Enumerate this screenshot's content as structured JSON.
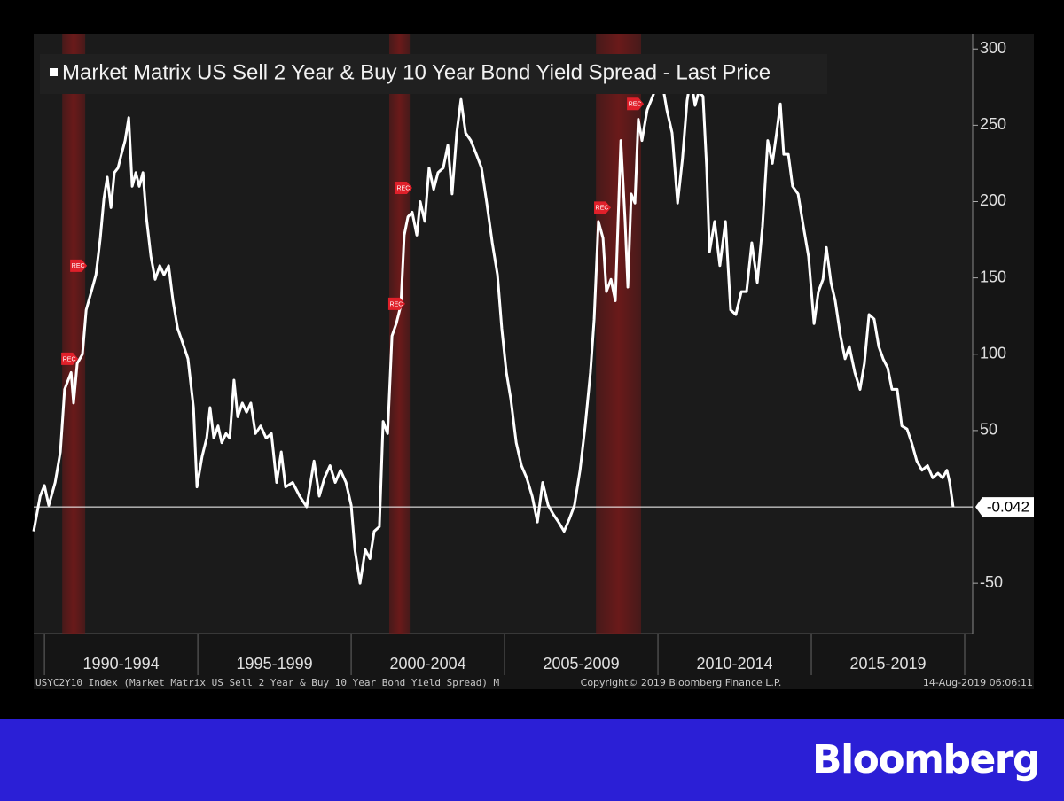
{
  "chart_data": {
    "type": "line",
    "series": [
      {
        "name": "Market Matrix US Sell 2 Year & Buy 10 Year Bond Yield Spread - Last Price",
        "color": "#ffffff",
        "values": [
          -16,
          7,
          14,
          1,
          16,
          36,
          77,
          88,
          68,
          94,
          100,
          129,
          141,
          152,
          176,
          202,
          216,
          196,
          219,
          222,
          231,
          240,
          255,
          210,
          219,
          210,
          219,
          190,
          164,
          149,
          158,
          152,
          158,
          135,
          117,
          109,
          97,
          65,
          13,
          33,
          45,
          65,
          45,
          53,
          42,
          48,
          45,
          83,
          59,
          68,
          62,
          68,
          48,
          53,
          45,
          48,
          16,
          36,
          13,
          16,
          7,
          0,
          30,
          7,
          19,
          27,
          16,
          24,
          16,
          1,
          -28,
          -50,
          -28,
          -34,
          -16,
          -13,
          56,
          48,
          112,
          120,
          132,
          178,
          190,
          193,
          178,
          200,
          187,
          222,
          208,
          219,
          222,
          237,
          205,
          245,
          267,
          245,
          240,
          231,
          222,
          199,
          173,
          152,
          117,
          88,
          71,
          42,
          27,
          19,
          7,
          -10,
          16,
          1,
          -5,
          -10,
          -16,
          -8,
          1,
          24,
          53,
          88,
          123,
          187,
          176,
          141,
          149,
          135,
          240,
          187,
          144,
          205,
          199,
          254,
          240,
          260,
          269,
          277,
          280,
          260,
          245,
          199,
          228,
          266,
          281,
          263,
          272,
          269,
          222,
          167,
          187,
          158,
          187,
          129,
          126,
          141,
          141,
          173,
          147,
          184,
          240,
          225,
          245,
          264,
          231,
          231,
          210,
          205,
          184,
          164,
          120,
          141,
          149,
          170,
          147,
          135,
          112,
          97,
          105,
          88,
          77,
          94,
          126,
          123,
          105,
          97,
          91,
          77,
          77,
          53,
          51,
          42,
          30,
          24,
          27,
          19,
          22,
          19,
          24,
          16,
          -0.042
        ]
      }
    ],
    "x": [
      1989.65,
      1989.86,
      1990.0,
      1990.14,
      1990.35,
      1990.52,
      1990.66,
      1990.87,
      1990.95,
      1991.07,
      1991.24,
      1991.36,
      1991.53,
      1991.68,
      1991.82,
      1991.94,
      1992.05,
      1992.17,
      1992.28,
      1992.4,
      1992.51,
      1992.63,
      1992.75,
      1992.86,
      1992.98,
      1993.09,
      1993.21,
      1993.32,
      1993.47,
      1993.61,
      1993.76,
      1993.9,
      1994.05,
      1994.19,
      1994.34,
      1994.48,
      1994.68,
      1994.86,
      1994.97,
      1995.14,
      1995.29,
      1995.4,
      1995.52,
      1995.66,
      1995.78,
      1995.92,
      1996.04,
      1996.18,
      1996.3,
      1996.45,
      1996.59,
      1996.73,
      1996.88,
      1997.05,
      1997.23,
      1997.4,
      1997.57,
      1997.72,
      1997.86,
      1998.09,
      1998.32,
      1998.55,
      1998.79,
      1998.96,
      1999.13,
      1999.31,
      1999.48,
      1999.65,
      1999.83,
      2000.0,
      2000.12,
      2000.29,
      2000.46,
      2000.61,
      2000.75,
      2000.92,
      2001.04,
      2001.19,
      2001.33,
      2001.47,
      2001.62,
      2001.73,
      2001.85,
      2001.99,
      2002.14,
      2002.25,
      2002.4,
      2002.54,
      2002.69,
      2002.83,
      2003.0,
      2003.15,
      2003.29,
      2003.44,
      2003.58,
      2003.73,
      2003.9,
      2004.08,
      2004.25,
      2004.42,
      2004.6,
      2004.77,
      2004.91,
      2005.06,
      2005.2,
      2005.38,
      2005.55,
      2005.72,
      2005.9,
      2006.07,
      2006.24,
      2006.42,
      2006.59,
      2006.76,
      2006.94,
      2007.11,
      2007.28,
      2007.46,
      2007.63,
      2007.8,
      2007.92,
      2008.06,
      2008.21,
      2008.32,
      2008.47,
      2008.61,
      2008.79,
      2008.93,
      2009.02,
      2009.13,
      2009.25,
      2009.36,
      2009.48,
      2009.65,
      2009.83,
      2009.97,
      2010.12,
      2010.29,
      2010.46,
      2010.64,
      2010.8,
      2010.95,
      2011.07,
      2011.21,
      2011.33,
      2011.47,
      2011.59,
      2011.68,
      2011.85,
      2012.02,
      2012.2,
      2012.37,
      2012.54,
      2012.72,
      2012.89,
      2013.06,
      2013.24,
      2013.41,
      2013.58,
      2013.73,
      2013.87,
      2013.99,
      2014.1,
      2014.25,
      2014.39,
      2014.57,
      2014.74,
      2014.91,
      2015.09,
      2015.23,
      2015.38,
      2015.49,
      2015.64,
      2015.78,
      2015.95,
      2016.1,
      2016.24,
      2016.42,
      2016.59,
      2016.73,
      2016.88,
      2017.05,
      2017.2,
      2017.34,
      2017.49,
      2017.63,
      2017.8,
      2017.95,
      2018.12,
      2018.27,
      2018.44,
      2018.61,
      2018.79,
      2018.96,
      2019.13,
      2019.28,
      2019.42,
      2019.51,
      2019.62
    ],
    "xlim": [
      1989.65,
      2020.26
    ],
    "ylim": [
      -83,
      310
    ],
    "yticks": [
      300,
      250,
      200,
      150,
      100,
      50,
      -50
    ],
    "periods": [
      {
        "label": "1990-1994",
        "start": 1990,
        "end": 1995
      },
      {
        "label": "1995-1999",
        "start": 1995,
        "end": 2000
      },
      {
        "label": "2000-2004",
        "start": 2000,
        "end": 2005
      },
      {
        "label": "2005-2009",
        "start": 2005,
        "end": 2010
      },
      {
        "label": "2010-2014",
        "start": 2010,
        "end": 2015
      },
      {
        "label": "2015-2019",
        "start": 2015,
        "end": 2020
      }
    ],
    "recessions": [
      [
        1990.58,
        1991.33
      ],
      [
        2001.24,
        2001.91
      ],
      [
        2007.98,
        2009.45
      ]
    ],
    "recession_color": "#6a1a1a",
    "markers": [
      {
        "x": 1990.81,
        "y": 97,
        "label": "REC"
      },
      {
        "x": 1991.1,
        "y": 158,
        "label": "REC"
      },
      {
        "x": 2001.47,
        "y": 133,
        "label": "REC"
      },
      {
        "x": 2001.7,
        "y": 209,
        "label": "REC"
      },
      {
        "x": 2008.18,
        "y": 196,
        "label": "REC"
      },
      {
        "x": 2009.25,
        "y": 264,
        "label": "REC"
      }
    ],
    "last_price": -0.042,
    "footer": {
      "left": "USYC2Y10 Index (Market Matrix US Sell 2 Year & Buy 10 Year Bond Yield Spread)  M",
      "center": "Copyright© 2019 Bloomberg Finance L.P.",
      "right": "14-Aug-2019 06:06:11"
    },
    "brand": "Bloomberg"
  }
}
